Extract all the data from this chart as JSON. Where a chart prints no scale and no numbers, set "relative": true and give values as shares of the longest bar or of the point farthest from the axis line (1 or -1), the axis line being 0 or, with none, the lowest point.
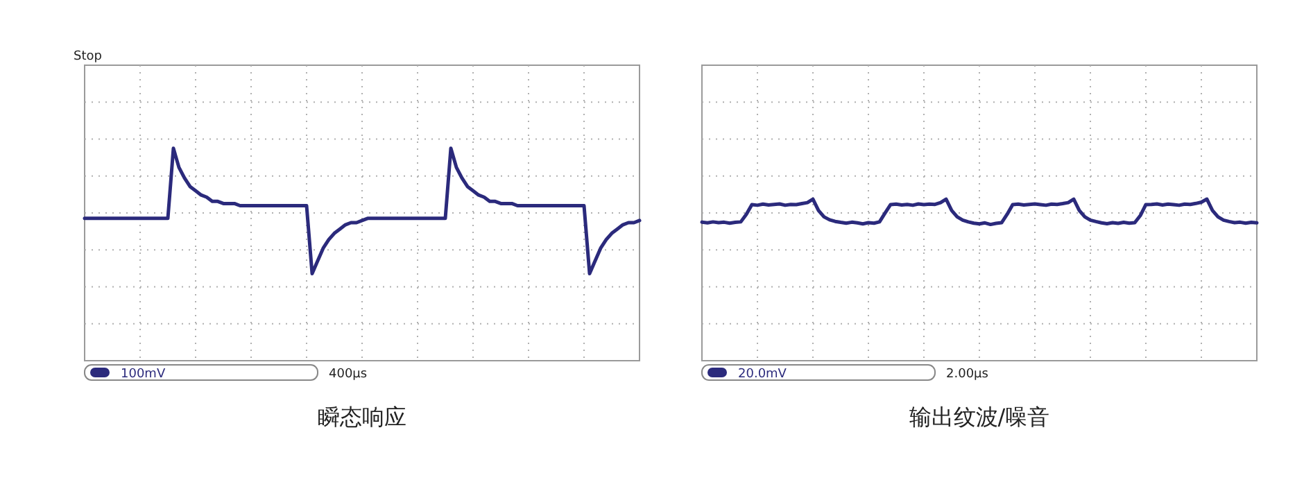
{
  "chart_data": [
    {
      "type": "line",
      "title": "瞬态响应",
      "relative": true,
      "grid": true,
      "annotations": [
        "Stop",
        "100mV",
        "400µs"
      ],
      "categories": [
        null,
        null,
        null,
        null,
        null,
        null,
        null,
        null,
        null,
        null,
        null,
        null,
        null,
        null,
        null,
        null,
        null,
        null,
        null,
        null,
        null,
        null,
        null,
        null,
        null,
        null,
        null,
        null,
        null,
        null,
        null,
        null,
        null,
        null,
        null,
        null,
        null,
        null,
        null,
        null,
        null,
        null,
        null,
        null,
        null,
        null,
        null,
        null,
        null,
        null,
        null,
        null,
        null,
        null,
        null,
        null,
        null,
        null,
        null,
        null,
        null,
        null,
        null,
        null,
        null,
        null,
        null,
        null,
        null,
        null,
        null,
        null,
        null,
        null,
        null,
        null,
        null,
        null,
        null,
        null,
        null,
        null,
        null,
        null,
        null,
        null,
        null,
        null,
        null,
        null,
        null,
        null,
        null,
        null,
        null,
        null,
        null,
        null,
        null,
        null,
        null
      ],
      "series": [
        {
          "color": "#2b2a7c",
          "values": [
            0.67,
            0.67,
            0.67,
            0.67,
            0.67,
            0.67,
            0.67,
            0.67,
            0.67,
            0.67,
            0.67,
            0.67,
            0.67,
            0.67,
            0.67,
            0.67,
            1.0,
            0.91,
            0.86,
            0.82,
            0.8,
            0.78,
            0.77,
            0.75,
            0.75,
            0.74,
            0.74,
            0.74,
            0.73,
            0.73,
            0.73,
            0.73,
            0.73,
            0.73,
            0.73,
            0.73,
            0.73,
            0.73,
            0.73,
            0.73,
            0.73,
            0.41,
            0.47,
            0.53,
            0.57,
            0.6,
            0.62,
            0.64,
            0.65,
            0.65,
            0.66,
            0.67,
            0.67,
            0.67,
            0.67,
            0.67,
            0.67,
            0.67,
            0.67,
            0.67,
            0.67,
            0.67,
            0.67,
            0.67,
            0.67,
            0.67,
            1.0,
            0.91,
            0.86,
            0.82,
            0.8,
            0.78,
            0.77,
            0.75,
            0.75,
            0.74,
            0.74,
            0.74,
            0.73,
            0.73,
            0.73,
            0.73,
            0.73,
            0.73,
            0.73,
            0.73,
            0.73,
            0.73,
            0.73,
            0.73,
            0.73,
            0.41,
            0.47,
            0.53,
            0.57,
            0.6,
            0.62,
            0.64,
            0.65,
            0.65,
            0.66
          ]
        }
      ]
    },
    {
      "type": "line",
      "title": "输出纹波/噪音",
      "relative": true,
      "grid": true,
      "annotations": [
        "20.0mV",
        "2.00µs"
      ],
      "categories": [
        null,
        null,
        null,
        null,
        null,
        null,
        null,
        null,
        null,
        null,
        null,
        null,
        null,
        null,
        null,
        null,
        null,
        null,
        null,
        null,
        null,
        null,
        null,
        null,
        null,
        null,
        null,
        null,
        null,
        null,
        null,
        null,
        null,
        null,
        null,
        null,
        null,
        null,
        null,
        null,
        null,
        null,
        null,
        null,
        null,
        null,
        null,
        null,
        null,
        null,
        null,
        null,
        null,
        null,
        null,
        null,
        null,
        null,
        null,
        null,
        null,
        null,
        null,
        null,
        null,
        null,
        null,
        null,
        null,
        null,
        null,
        null,
        null,
        null,
        null,
        null,
        null,
        null,
        null,
        null,
        null,
        null,
        null,
        null,
        null,
        null,
        null,
        null,
        null,
        null,
        null,
        null,
        null,
        null,
        null,
        null,
        null,
        null,
        null,
        null,
        null
      ],
      "series": [
        {
          "color": "#2b2a7c",
          "values": [
            0.857,
            0.853,
            0.859,
            0.854,
            0.857,
            0.851,
            0.856,
            0.859,
            0.906,
            0.966,
            0.962,
            0.969,
            0.964,
            0.967,
            0.97,
            0.962,
            0.967,
            0.966,
            0.972,
            0.978,
            1.0,
            0.93,
            0.89,
            0.872,
            0.862,
            0.856,
            0.851,
            0.857,
            0.853,
            0.847,
            0.854,
            0.851,
            0.859,
            0.914,
            0.966,
            0.969,
            0.964,
            0.967,
            0.962,
            0.97,
            0.966,
            0.969,
            0.967,
            0.978,
            1.0,
            0.93,
            0.89,
            0.87,
            0.859,
            0.851,
            0.847,
            0.853,
            0.843,
            0.85,
            0.854,
            0.906,
            0.966,
            0.969,
            0.964,
            0.967,
            0.97,
            0.966,
            0.962,
            0.969,
            0.967,
            0.972,
            0.978,
            1.0,
            0.93,
            0.89,
            0.87,
            0.861,
            0.853,
            0.848,
            0.854,
            0.85,
            0.856,
            0.851,
            0.854,
            0.898,
            0.966,
            0.967,
            0.97,
            0.964,
            0.969,
            0.966,
            0.962,
            0.969,
            0.967,
            0.973,
            0.981,
            1.0,
            0.93,
            0.89,
            0.87,
            0.861,
            0.854,
            0.857,
            0.851,
            0.856,
            0.853
          ]
        }
      ]
    }
  ]
}
